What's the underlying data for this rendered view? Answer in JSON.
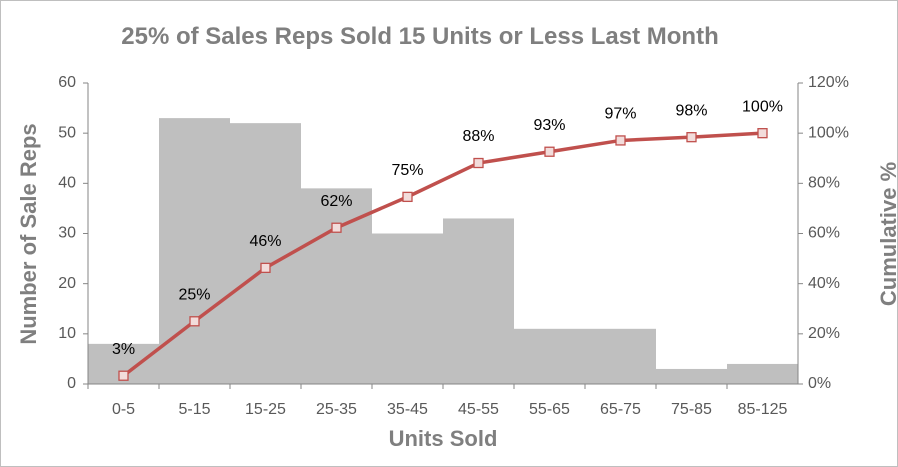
{
  "chart_data": {
    "type": "bar",
    "title": "25% of Sales Reps Sold 15 Units or Less Last Month",
    "x_label": "Units Sold",
    "y_label": "Number of Sale Reps",
    "y2_label": "Cumulative %",
    "categories": [
      "0-5",
      "5-15",
      "15-25",
      "25-35",
      "35-45",
      "45-55",
      "55-65",
      "65-75",
      "75-85",
      "85-125"
    ],
    "series": [
      {
        "name": "Number of Sale Reps",
        "type": "bar",
        "color": "#bfbfbf",
        "values": [
          8,
          53,
          52,
          39,
          30,
          33,
          11,
          11,
          3,
          4
        ]
      },
      {
        "name": "Cumulative %",
        "type": "line",
        "axis": "y2",
        "color": "#c0504d",
        "marker_fill": "#f2dcdb",
        "values": [
          3.3,
          25,
          46.3,
          62.3,
          74.6,
          88.1,
          92.6,
          97.1,
          98.4,
          100
        ],
        "value_labels": [
          "3%",
          "25%",
          "46%",
          "62%",
          "75%",
          "88%",
          "93%",
          "97%",
          "98%",
          "100%"
        ]
      }
    ],
    "ylim": [
      0,
      60
    ],
    "yticks": [
      0,
      10,
      20,
      30,
      40,
      50,
      60
    ],
    "y2lim": [
      0,
      120
    ],
    "y2ticks": [
      {
        "value": 0,
        "label": "0%"
      },
      {
        "value": 20,
        "label": "20%"
      },
      {
        "value": 40,
        "label": "40%"
      },
      {
        "value": 60,
        "label": "60%"
      },
      {
        "value": 80,
        "label": "80%"
      },
      {
        "value": 100,
        "label": "100%"
      },
      {
        "value": 120,
        "label": "120%"
      }
    ],
    "grid": false
  }
}
